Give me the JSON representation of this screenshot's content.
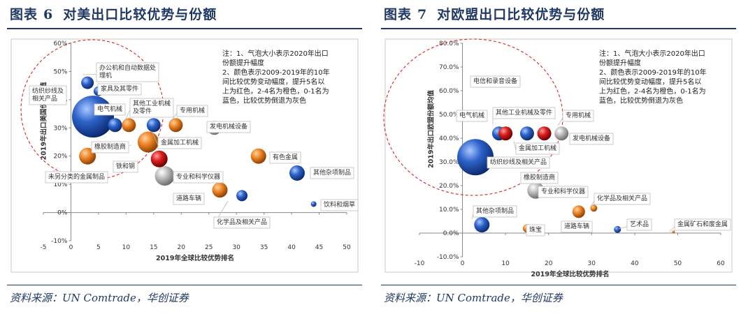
{
  "figures": [
    {
      "title_prefix": "图表",
      "title_num": "6",
      "title_text": "对美出口比较优势与份额",
      "source": "资料来源：UN Comtrade，华创证券"
    },
    {
      "title_prefix": "图表",
      "title_num": "7",
      "title_text": "对欧盟出口比较优势与份额",
      "source": "资料来源：UN Comtrade，华创证券"
    }
  ],
  "chart_data": [
    {
      "type": "scatter",
      "title": "",
      "xlabel": "2019年全球比较优势排名",
      "ylabel": "2019年出口美国份额均值",
      "xlim": [
        -5,
        50
      ],
      "ylim": [
        -10,
        60
      ],
      "x_ticks": [
        -5,
        0,
        5,
        10,
        15,
        20,
        25,
        30,
        35,
        40,
        45,
        50
      ],
      "y_ticks": [
        -10,
        0,
        10,
        20,
        30,
        40,
        50,
        60
      ],
      "y_tick_format": "percent_int",
      "note_lines": [
        "注：1、气泡大小表示2020年出口",
        "份额提升幅度",
        "2、颜色表示2009-2019年的10年",
        "间比较优势变动幅度，提升5名以",
        "上为红色，2-4名为橙色，0-1名为",
        "蓝色，比较优势倒退为灰色"
      ],
      "legend": "none",
      "grid": false,
      "points": [
        {
          "label": "办公机和自动数据处理机",
          "label_lines": [
            "办公机和自动数据处",
            "理机"
          ],
          "x": 3,
          "y": 46,
          "size": 9,
          "color": "blue"
        },
        {
          "label": "家具及其零件",
          "x": 5,
          "y": 43,
          "size": 7,
          "color": "blue"
        },
        {
          "label": "纺织纱线及相关产品",
          "label_lines": [
            "纺织纱线及",
            "相关产品"
          ],
          "x": 4,
          "y": 34,
          "size": 30,
          "color": "blue"
        },
        {
          "label": "电气机械",
          "x": 8,
          "y": 31,
          "size": 10,
          "color": "blue"
        },
        {
          "label": "其他工业机械及零件",
          "label_lines": [
            "其他工业机械",
            "及零件"
          ],
          "x": 10.5,
          "y": 31,
          "size": 10,
          "color": "orange"
        },
        {
          "label": "金属加工机械",
          "x": 15,
          "y": 31,
          "size": 10,
          "color": "blue"
        },
        {
          "label": "专用机械",
          "x": 19,
          "y": 31,
          "size": 10,
          "color": "orange"
        },
        {
          "label": "发电机械设备",
          "x": 26,
          "y": 30,
          "size": 10,
          "color": "gray"
        },
        {
          "label": "橡胶制造商",
          "x": 14,
          "y": 25,
          "size": 15,
          "color": "orange"
        },
        {
          "label": "未另分类的金属制品",
          "x": 3,
          "y": 20,
          "size": 12,
          "color": "orange"
        },
        {
          "label": "铁和钢",
          "x": 16,
          "y": 19,
          "size": 12,
          "color": "red"
        },
        {
          "label": "有色金属",
          "x": 34,
          "y": 20,
          "size": 11,
          "color": "orange"
        },
        {
          "label": "其他杂项制品",
          "x": 41,
          "y": 14,
          "size": 11,
          "color": "blue"
        },
        {
          "label": "专业和科学仪器",
          "x": 17,
          "y": 13,
          "size": 14,
          "color": "gray"
        },
        {
          "label": "道路车辆",
          "x": 27,
          "y": 8,
          "size": 11,
          "color": "orange"
        },
        {
          "label": "化学品及相关产品",
          "x": 31,
          "y": 6,
          "size": 8,
          "color": "blue"
        },
        {
          "label": "饮料和烟草",
          "x": 44,
          "y": 3,
          "size": 4,
          "color": "blue"
        }
      ]
    },
    {
      "type": "scatter",
      "title": "",
      "xlabel": "2019年全球比较优势排名",
      "ylabel": "2019年出口欧盟份额均值",
      "xlim": [
        -10,
        60
      ],
      "ylim": [
        -10,
        80
      ],
      "x_ticks": [
        -10,
        0,
        10,
        20,
        30,
        40,
        50,
        60
      ],
      "y_ticks": [
        -10,
        0,
        10,
        20,
        30,
        40,
        50,
        60,
        70,
        80
      ],
      "y_tick_format": "percent_1dp",
      "note_lines": [
        "注：1、气泡大小表示2020年出口",
        "份额提升幅度",
        "2、颜色表示2009-2019年的10年",
        "间比较优势变动幅度，提升5名以",
        "上为红色，2-4名为橙色，0-1名为",
        "蓝色，比较优势倒退为灰色"
      ],
      "legend": "none",
      "grid": false,
      "points": [
        {
          "label": "电信和录音设备",
          "x": 4,
          "y": 64,
          "size": 6,
          "color": "blue"
        },
        {
          "label": "电气机械",
          "x": 8.5,
          "y": 42,
          "size": 10,
          "color": "blue"
        },
        {
          "label": "其他工业机械及零件",
          "x": 10,
          "y": 42,
          "size": 10,
          "color": "red"
        },
        {
          "label": "金属加工机械",
          "x": 15,
          "y": 42,
          "size": 10,
          "color": "blue"
        },
        {
          "label": "专用机械",
          "x": 19,
          "y": 42,
          "size": 10,
          "color": "red"
        },
        {
          "label": "发电机械设备",
          "x": 23,
          "y": 42,
          "size": 10,
          "color": "gray"
        },
        {
          "label": "纺织纱线及相关产品",
          "x": 3,
          "y": 32,
          "size": 26,
          "color": "blue"
        },
        {
          "label": "橡胶制造商",
          "x": 14.5,
          "y": 23,
          "size": 5,
          "color": "orange"
        },
        {
          "label": "专业和科学仪器",
          "x": 17,
          "y": 18,
          "size": 12,
          "color": "gray"
        },
        {
          "label": "化学品及相关产品",
          "x": 30.5,
          "y": 10.5,
          "size": 5,
          "color": "orange"
        },
        {
          "label": "道路车辆",
          "x": 27,
          "y": 9,
          "size": 9,
          "color": "orange"
        },
        {
          "label": "其他杂项制品",
          "x": 4.5,
          "y": 3.5,
          "size": 11,
          "color": "blue"
        },
        {
          "label": "珠宝",
          "x": 15,
          "y": 2,
          "size": 6,
          "color": "orange"
        },
        {
          "label": "艺术品",
          "x": 36,
          "y": 1.5,
          "size": 5,
          "color": "blue"
        },
        {
          "label": "金属矿石和废金属",
          "x": 49,
          "y": 0.5,
          "size": 2,
          "color": "orange"
        }
      ]
    }
  ]
}
